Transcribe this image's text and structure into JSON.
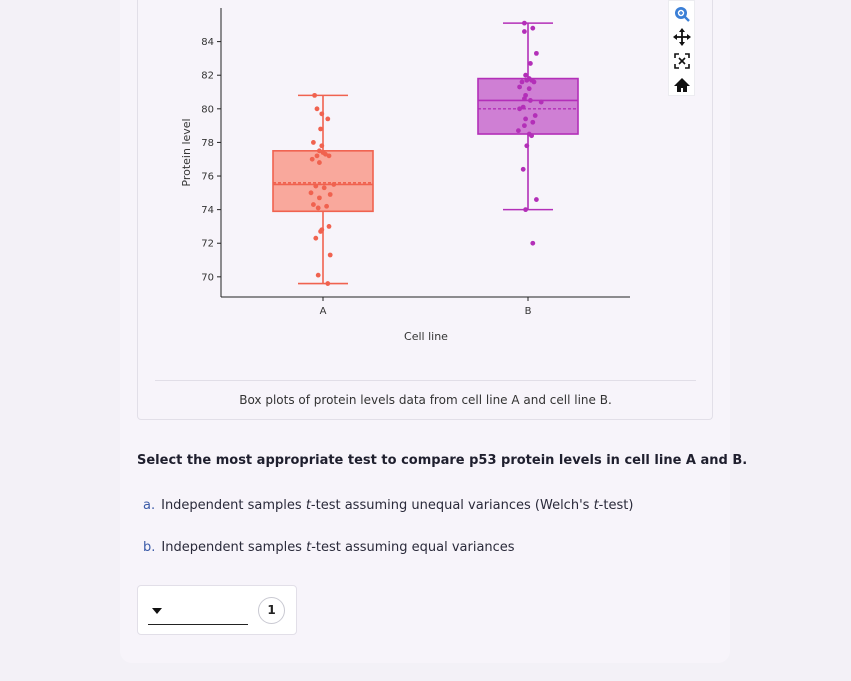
{
  "chart_data": {
    "type": "box",
    "xlabel": "Cell line",
    "ylabel": "Protein level",
    "categories": [
      "A",
      "B"
    ],
    "yticks": [
      70,
      72,
      74,
      76,
      78,
      80,
      82,
      84
    ],
    "ylim": [
      68.8,
      86.0
    ],
    "series": [
      {
        "name": "A",
        "color": "#f0624f",
        "fill": "#f9a89c",
        "whisker_low": 69.6,
        "q1": 73.9,
        "median": 75.5,
        "mean": 75.6,
        "q3": 77.5,
        "whisker_high": 80.8,
        "points": [
          80.8,
          80.0,
          79.7,
          79.4,
          78.8,
          78.0,
          77.8,
          77.5,
          77.4,
          77.3,
          77.2,
          77.2,
          77.0,
          76.8,
          75.5,
          75.4,
          75.3,
          75.0,
          74.9,
          74.7,
          74.3,
          74.2,
          74.1,
          73.0,
          72.8,
          72.7,
          72.3,
          71.3,
          70.1,
          69.6
        ],
        "jitter": [
          -0.14,
          -0.1,
          -0.02,
          0.08,
          -0.04,
          -0.16,
          -0.02,
          -0.06,
          0.0,
          0.04,
          -0.1,
          0.1,
          -0.18,
          -0.06,
          0.18,
          -0.12,
          0.02,
          -0.2,
          0.12,
          -0.06,
          -0.16,
          0.06,
          -0.08,
          0.1,
          -0.02,
          -0.04,
          -0.12,
          0.12,
          -0.08,
          0.08
        ]
      },
      {
        "name": "B",
        "color": "#b32fb8",
        "fill": "#cf7fd4",
        "whisker_low": 74.0,
        "q1": 78.5,
        "median": 80.5,
        "mean": 80.0,
        "q3": 81.8,
        "whisker_high": 85.1,
        "points": [
          85.1,
          84.8,
          84.6,
          83.3,
          82.7,
          82.0,
          81.8,
          81.7,
          81.7,
          81.6,
          81.6,
          81.3,
          81.2,
          80.8,
          80.6,
          80.5,
          80.4,
          80.1,
          80.0,
          79.6,
          79.4,
          79.2,
          79.0,
          78.7,
          78.5,
          78.4,
          77.8,
          76.4,
          74.6,
          74.0,
          72.0
        ],
        "jitter": [
          -0.06,
          0.08,
          -0.06,
          0.14,
          0.04,
          -0.04,
          0.02,
          -0.02,
          0.06,
          -0.1,
          0.1,
          -0.14,
          0.02,
          -0.04,
          -0.06,
          0.04,
          0.22,
          -0.08,
          -0.14,
          0.12,
          -0.04,
          0.08,
          -0.06,
          -0.16,
          0.02,
          0.06,
          -0.02,
          -0.08,
          0.14,
          -0.04,
          0.08
        ]
      }
    ]
  },
  "toolbar": {
    "icons": [
      "zoom-icon",
      "pan-icon",
      "autoscale-icon",
      "home-icon"
    ]
  },
  "caption": "Box plots of protein levels data from cell line A and cell line B.",
  "question": "Select the most appropriate test to compare p53 protein levels in cell line A and B.",
  "options": [
    {
      "letter": "a.",
      "pre": "Independent samples ",
      "t": "t",
      "mid": "-test assuming unequal variances (Welch's ",
      "t2": "t",
      "post": "-test)"
    },
    {
      "letter": "b.",
      "pre": "Independent samples ",
      "t": "t",
      "mid": "-test assuming equal variances",
      "t2": "",
      "post": ""
    }
  ],
  "answer": {
    "selected": "",
    "badge": "1"
  }
}
